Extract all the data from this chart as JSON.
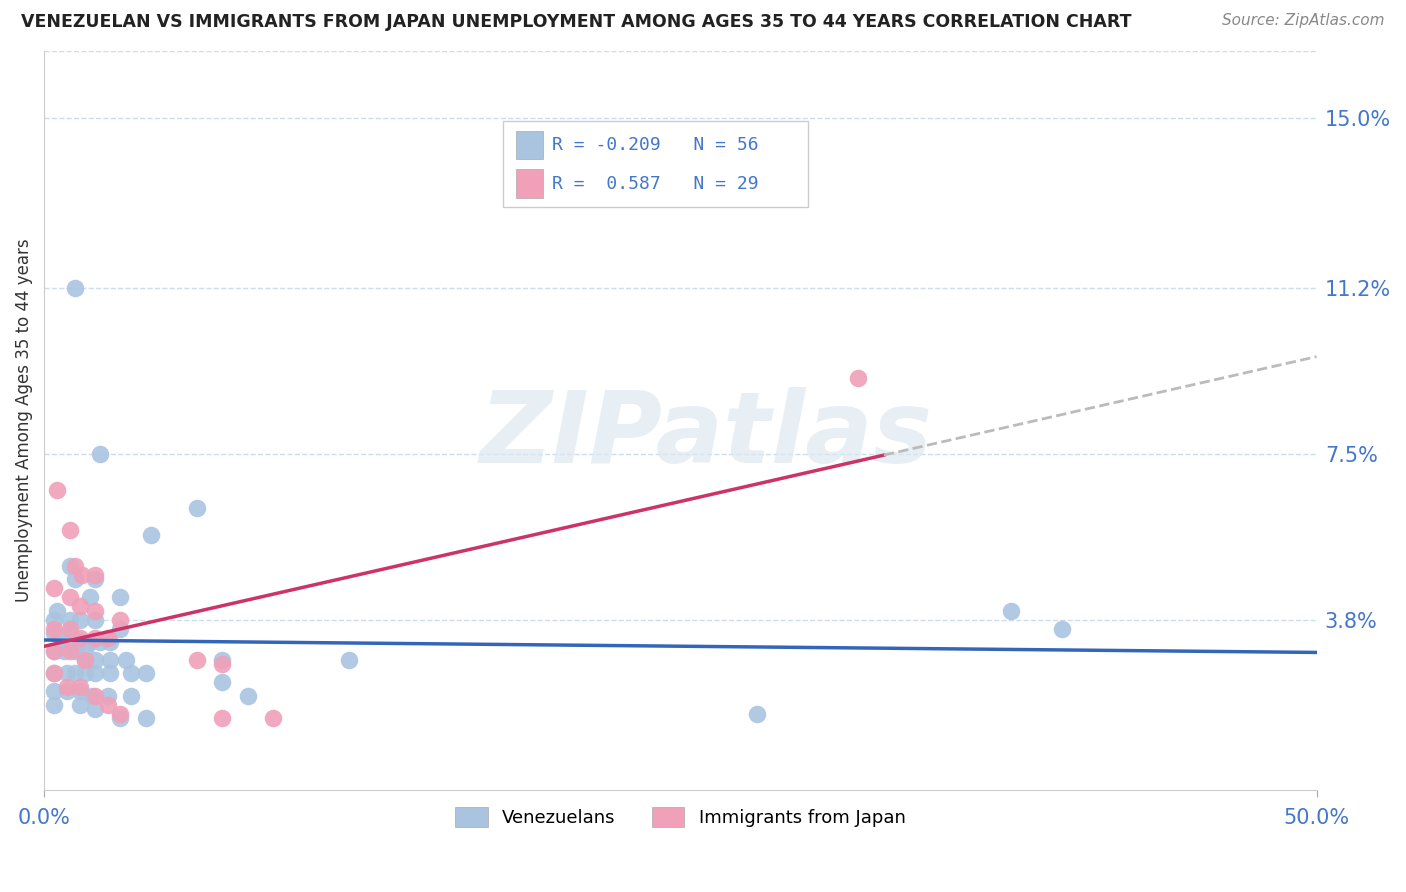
{
  "title": "VENEZUELAN VS IMMIGRANTS FROM JAPAN UNEMPLOYMENT AMONG AGES 35 TO 44 YEARS CORRELATION CHART",
  "source": "Source: ZipAtlas.com",
  "ylabel": "Unemployment Among Ages 35 to 44 years",
  "xlim": [
    0.0,
    0.5
  ],
  "ylim": [
    0.0,
    0.165
  ],
  "yticks": [
    0.038,
    0.075,
    0.112,
    0.15
  ],
  "ytick_labels": [
    "3.8%",
    "7.5%",
    "11.2%",
    "15.0%"
  ],
  "xticks": [
    0.0,
    0.5
  ],
  "xtick_labels": [
    "0.0%",
    "50.0%"
  ],
  "venezuelan_color": "#aac4e0",
  "japan_color": "#f0a0b8",
  "venezuelan_line_color": "#3366bb",
  "japan_line_color": "#cc3366",
  "japan_dash_color": "#bbbbbb",
  "legend_R_venezuelan": "-0.209",
  "legend_N_venezuelan": "56",
  "legend_R_japan": "0.587",
  "legend_N_japan": "29",
  "venezuelan_scatter": [
    [
      0.012,
      0.112
    ],
    [
      0.022,
      0.075
    ],
    [
      0.06,
      0.063
    ],
    [
      0.042,
      0.057
    ],
    [
      0.01,
      0.05
    ],
    [
      0.012,
      0.047
    ],
    [
      0.02,
      0.047
    ],
    [
      0.018,
      0.043
    ],
    [
      0.03,
      0.043
    ],
    [
      0.005,
      0.04
    ],
    [
      0.004,
      0.038
    ],
    [
      0.01,
      0.038
    ],
    [
      0.014,
      0.038
    ],
    [
      0.02,
      0.038
    ],
    [
      0.03,
      0.036
    ],
    [
      0.004,
      0.035
    ],
    [
      0.01,
      0.035
    ],
    [
      0.008,
      0.033
    ],
    [
      0.014,
      0.033
    ],
    [
      0.018,
      0.033
    ],
    [
      0.022,
      0.033
    ],
    [
      0.026,
      0.033
    ],
    [
      0.004,
      0.031
    ],
    [
      0.008,
      0.031
    ],
    [
      0.012,
      0.031
    ],
    [
      0.016,
      0.031
    ],
    [
      0.016,
      0.029
    ],
    [
      0.02,
      0.029
    ],
    [
      0.026,
      0.029
    ],
    [
      0.032,
      0.029
    ],
    [
      0.07,
      0.029
    ],
    [
      0.12,
      0.029
    ],
    [
      0.004,
      0.026
    ],
    [
      0.009,
      0.026
    ],
    [
      0.012,
      0.026
    ],
    [
      0.016,
      0.026
    ],
    [
      0.02,
      0.026
    ],
    [
      0.026,
      0.026
    ],
    [
      0.034,
      0.026
    ],
    [
      0.04,
      0.026
    ],
    [
      0.07,
      0.024
    ],
    [
      0.004,
      0.022
    ],
    [
      0.009,
      0.022
    ],
    [
      0.014,
      0.022
    ],
    [
      0.019,
      0.021
    ],
    [
      0.025,
      0.021
    ],
    [
      0.034,
      0.021
    ],
    [
      0.08,
      0.021
    ],
    [
      0.004,
      0.019
    ],
    [
      0.014,
      0.019
    ],
    [
      0.02,
      0.018
    ],
    [
      0.03,
      0.016
    ],
    [
      0.04,
      0.016
    ],
    [
      0.28,
      0.017
    ],
    [
      0.38,
      0.04
    ],
    [
      0.4,
      0.036
    ]
  ],
  "japan_scatter": [
    [
      0.005,
      0.067
    ],
    [
      0.01,
      0.058
    ],
    [
      0.012,
      0.05
    ],
    [
      0.015,
      0.048
    ],
    [
      0.02,
      0.048
    ],
    [
      0.004,
      0.045
    ],
    [
      0.01,
      0.043
    ],
    [
      0.014,
      0.041
    ],
    [
      0.02,
      0.04
    ],
    [
      0.03,
      0.038
    ],
    [
      0.004,
      0.036
    ],
    [
      0.01,
      0.036
    ],
    [
      0.014,
      0.034
    ],
    [
      0.02,
      0.034
    ],
    [
      0.025,
      0.034
    ],
    [
      0.004,
      0.031
    ],
    [
      0.01,
      0.031
    ],
    [
      0.016,
      0.029
    ],
    [
      0.06,
      0.029
    ],
    [
      0.07,
      0.028
    ],
    [
      0.004,
      0.026
    ],
    [
      0.009,
      0.023
    ],
    [
      0.014,
      0.023
    ],
    [
      0.02,
      0.021
    ],
    [
      0.025,
      0.019
    ],
    [
      0.03,
      0.017
    ],
    [
      0.07,
      0.016
    ],
    [
      0.09,
      0.016
    ],
    [
      0.32,
      0.092
    ]
  ],
  "watermark_text": "ZIPatlas",
  "background_color": "#ffffff",
  "grid_color": "#ccddee",
  "title_color": "#222222",
  "axis_label_color": "#333333",
  "tick_color": "#4477cc",
  "source_color": "#888888"
}
